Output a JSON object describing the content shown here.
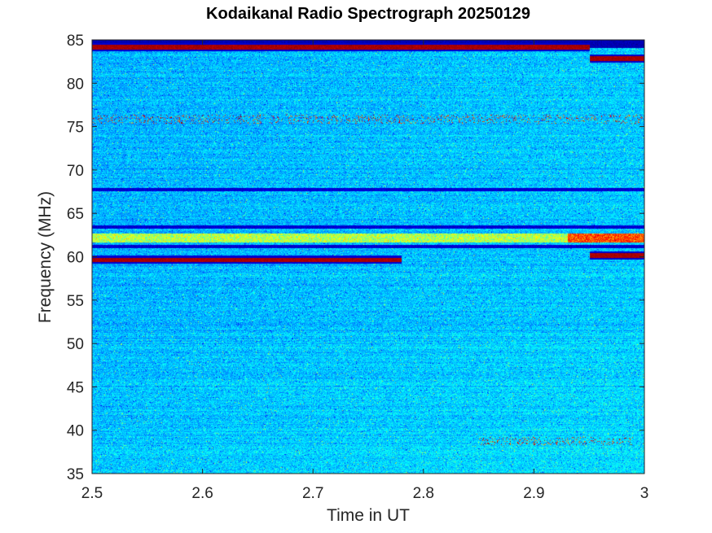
{
  "chart_data": {
    "type": "heatmap",
    "title": "Kodaikanal Radio Spectrograph  20250129",
    "xlabel": "Time in UT",
    "ylabel": "Frequency (MHz)",
    "xlim": [
      2.5,
      3.0
    ],
    "ylim": [
      35,
      85
    ],
    "x_ticks": [
      2.5,
      2.6,
      2.7,
      2.8,
      2.9,
      3.0
    ],
    "x_tick_labels": [
      "2.5",
      "2.6",
      "2.7",
      "2.8",
      "2.9",
      "3"
    ],
    "y_ticks": [
      35,
      40,
      45,
      50,
      55,
      60,
      65,
      70,
      75,
      80,
      85
    ],
    "y_tick_labels": [
      "35",
      "40",
      "45",
      "50",
      "55",
      "60",
      "65",
      "70",
      "75",
      "80",
      "85"
    ],
    "colormap": "jet",
    "background_level": "mid-blue noise",
    "features": [
      {
        "kind": "dark-band",
        "freq_mhz": 84.6,
        "t_start": 2.5,
        "t_end": 3.0
      },
      {
        "kind": "bright-line",
        "freq_mhz": 84.2,
        "t_start": 2.5,
        "t_end": 2.95
      },
      {
        "kind": "bright-line",
        "freq_mhz": 82.9,
        "t_start": 2.95,
        "t_end": 3.0
      },
      {
        "kind": "dark-line",
        "freq_mhz": 67.8,
        "t_start": 2.5,
        "t_end": 3.0
      },
      {
        "kind": "dark-line",
        "freq_mhz": 63.5,
        "t_start": 2.5,
        "t_end": 3.0
      },
      {
        "kind": "bright-band",
        "freq_mhz": 62.2,
        "t_start": 2.5,
        "t_end": 3.0
      },
      {
        "kind": "dark-line",
        "freq_mhz": 61.2,
        "t_start": 2.5,
        "t_end": 3.0
      },
      {
        "kind": "bright-line",
        "freq_mhz": 59.7,
        "t_start": 2.5,
        "t_end": 2.78
      },
      {
        "kind": "bright-line",
        "freq_mhz": 60.2,
        "t_start": 2.95,
        "t_end": 3.0
      },
      {
        "kind": "speckle-row",
        "freq_mhz": 38.8,
        "t_start": 2.85,
        "t_end": 2.99
      },
      {
        "kind": "speckle-row",
        "freq_mhz": 75.9,
        "t_start": 2.5,
        "t_end": 3.0
      }
    ]
  }
}
